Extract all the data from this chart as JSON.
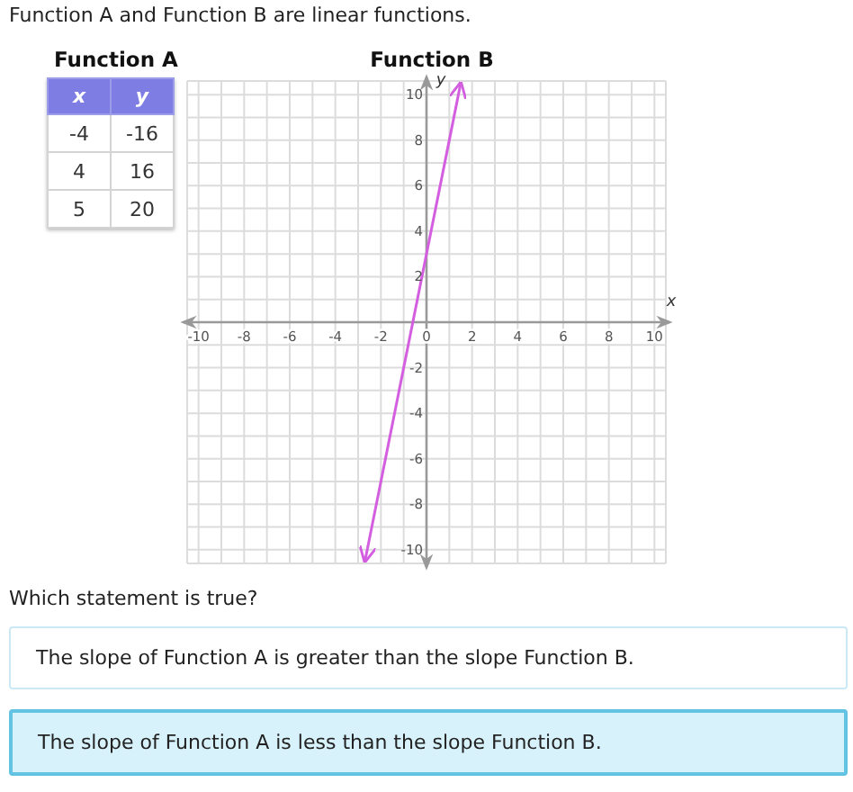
{
  "chart_data": [
    {
      "type": "other",
      "annotations": [
        "Function A and Function B are linear functions."
      ]
    },
    {
      "type": "other",
      "title": "Function A",
      "xlabel": "x",
      "ylabel": "y",
      "categories": [
        "-4",
        "4",
        "5"
      ],
      "values": [
        -16,
        16,
        20
      ],
      "data_labels": true
    },
    {
      "type": "line",
      "title": "Function B",
      "xlabel": "x",
      "ylabel": "y",
      "xlim": [
        -10.5,
        10.5
      ],
      "ylim": [
        -10.6,
        10.6
      ],
      "xticks": [
        -10,
        {
          "value": -9,
          "label": null
        },
        -8,
        {
          "value": -7,
          "label": null
        },
        -6,
        {
          "value": -5,
          "label": null
        },
        -4,
        {
          "value": -3,
          "label": null
        },
        -2,
        {
          "value": -1,
          "label": null
        },
        0,
        {
          "value": 1,
          "label": null
        },
        2,
        {
          "value": 3,
          "label": null
        },
        4,
        {
          "value": 5,
          "label": null
        },
        6,
        {
          "value": 7,
          "label": null
        },
        8,
        {
          "value": 9,
          "label": null
        },
        10
      ],
      "yticks": [
        -10,
        {
          "value": -9,
          "label": null
        },
        -8,
        {
          "value": -7,
          "label": null
        },
        -6,
        {
          "value": -5,
          "label": null
        },
        -4,
        {
          "value": -3,
          "label": null
        },
        -2,
        {
          "value": -1,
          "label": null
        },
        {
          "value": 0,
          "label": null
        },
        {
          "value": 1,
          "label": null
        },
        2,
        {
          "value": 3,
          "label": null
        },
        4,
        {
          "value": 5,
          "label": null
        },
        6,
        {
          "value": 7,
          "label": null
        },
        8,
        {
          "value": 9,
          "label": null
        },
        10
      ],
      "grid": true,
      "series": [
        {
          "color": "#d35ee0",
          "x": [
            -2.7,
            1.5
          ],
          "values": [
            -10.5,
            10.5
          ]
        }
      ]
    },
    {
      "type": "other",
      "title": "Which statement is true?",
      "annotations": [
        "The slope of Function A is greater than the slope Function B.",
        "The slope of Function A is less than the slope Function B."
      ]
    }
  ]
}
